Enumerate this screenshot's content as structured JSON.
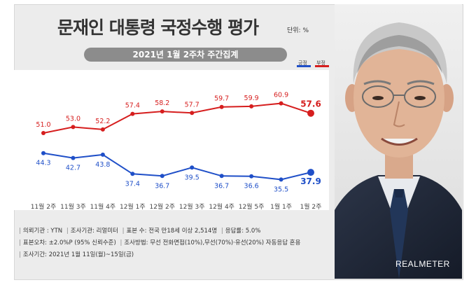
{
  "title": "문재인 대통령 국정수행 평가",
  "unit": "단위: %",
  "subtitle": "2021년 1월 2주차 주간집계",
  "legend": [
    {
      "label": "긍정",
      "color": "#1f4fc8"
    },
    {
      "label": "부정",
      "color": "#d61e1e"
    }
  ],
  "chart_data": {
    "type": "line",
    "categories": [
      "11월 2주",
      "11월 3주",
      "11월 4주",
      "12월 1주",
      "12월 2주",
      "12월 3주",
      "12월 4주",
      "12월 5주",
      "1월 1주",
      "1월 2주"
    ],
    "series": [
      {
        "name": "부정",
        "values": [
          51.0,
          53.0,
          52.2,
          57.4,
          58.2,
          57.7,
          59.7,
          59.9,
          60.9,
          57.6
        ],
        "color": "#d61e1e"
      },
      {
        "name": "긍정",
        "values": [
          44.3,
          42.7,
          43.8,
          37.4,
          36.7,
          39.5,
          36.7,
          36.6,
          35.5,
          37.9
        ],
        "color": "#1f4fc8"
      }
    ],
    "value_labels": {
      "부정": [
        "51.0",
        "53.0",
        "52.2",
        "57.4",
        "58.2",
        "57.7",
        "59.7",
        "59.9",
        "60.9",
        "57.6"
      ],
      "긍정": [
        "44.3",
        "42.7",
        "43.8",
        "37.4",
        "36.7",
        "39.5",
        "36.7",
        "36.6",
        "35.5",
        "37.9"
      ]
    },
    "ylim": [
      30,
      65
    ]
  },
  "info": {
    "line1": [
      "의뢰기관 : YTN",
      "조사기관: 리얼미터",
      "표본 수: 전국 만18세 이상 2,514명",
      "응답률: 5.0%"
    ],
    "line2": [
      "표본오차: ±2.0%P (95% 신뢰수준)",
      "조사방법: 무선 전화면접(10%),무선(70%)·유선(20%) 자동응답 혼용"
    ],
    "line3": [
      "조사기간: 2021년 1월 11일(월)~15일(금)"
    ]
  },
  "brand": "REALMETER"
}
